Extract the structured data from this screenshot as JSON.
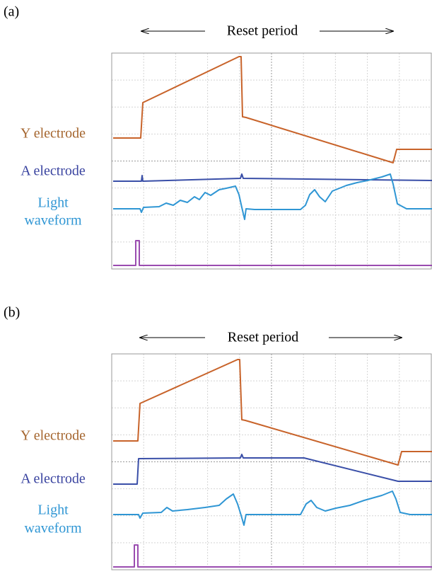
{
  "panels": [
    {
      "label": "(a)",
      "period": "Reset period",
      "y_label": "Y electrode",
      "a_label": "A electrode",
      "light_label": [
        "Light",
        "waveform"
      ]
    },
    {
      "label": "(b)",
      "period": "Reset period",
      "y_label": "Y electrode",
      "a_label": "A electrode",
      "light_label": [
        "Light",
        "waveform"
      ]
    }
  ]
}
